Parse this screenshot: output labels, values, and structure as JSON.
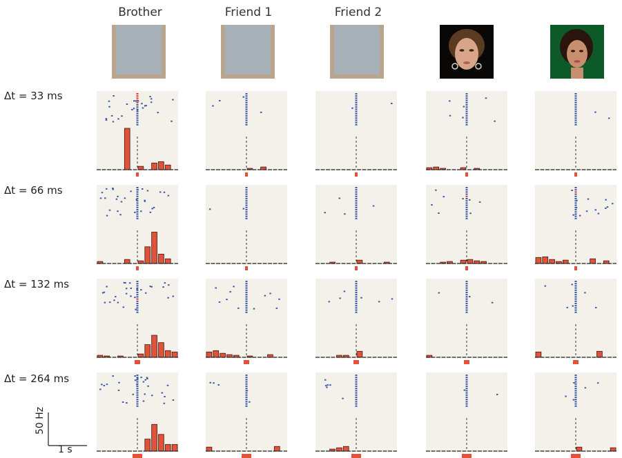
{
  "columns": [
    {
      "title": "Brother",
      "face": "masked-face-icon"
    },
    {
      "title": "Friend 1",
      "face": "masked-face-icon"
    },
    {
      "title": "Friend 2",
      "face": "masked-face-icon"
    },
    {
      "title": "",
      "face": "celebrity-face-1-icon"
    },
    {
      "title": "",
      "face": "celebrity-face-2-icon"
    }
  ],
  "rows": [
    "Δt = 33 ms",
    "Δt = 66 ms",
    "Δt = 132 ms",
    "Δt = 264 ms"
  ],
  "scale_bar": {
    "y_label": "50 Hz",
    "x_label": "1 s"
  },
  "colors": {
    "raster": "#3c5aa8",
    "raster_highlight": "#e2352b",
    "bar": "#e0533a",
    "bar_edge": "#3a1a12",
    "panel_bg": "#f4f1ea"
  },
  "chart_data": {
    "type": "bar",
    "description_units": "histogram bins of firing rate (Hz) over time; 12 bins per panel",
    "bins": 12,
    "panels": [
      [
        {
          "hist": [
            0,
            0,
            0,
            0,
            62,
            0,
            5,
            0,
            10,
            12,
            7,
            0
          ],
          "stim": 0.5
        },
        {
          "hist": [
            0,
            0,
            0,
            0,
            0,
            0,
            2,
            0,
            4,
            0,
            0,
            0
          ],
          "stim": 0.5
        },
        {
          "hist": [
            0,
            0,
            0,
            0,
            0,
            0,
            0,
            0,
            0,
            0,
            0,
            0
          ],
          "stim": 0.5
        },
        {
          "hist": [
            3,
            4,
            2,
            0,
            0,
            3,
            0,
            2,
            0,
            0,
            0,
            0
          ],
          "stim": 0.5
        },
        {
          "hist": [
            0,
            0,
            0,
            0,
            0,
            0,
            0,
            0,
            0,
            0,
            0,
            0
          ],
          "stim": 0.5
        }
      ],
      [
        {
          "hist": [
            3,
            0,
            0,
            0,
            6,
            0,
            4,
            25,
            47,
            14,
            7,
            0
          ],
          "stim": 0.5
        },
        {
          "hist": [
            0,
            0,
            0,
            0,
            0,
            0,
            0,
            0,
            0,
            0,
            0,
            0
          ],
          "stim": 0.5
        },
        {
          "hist": [
            0,
            0,
            2,
            0,
            0,
            0,
            5,
            0,
            0,
            0,
            2,
            0
          ],
          "stim": 0.5
        },
        {
          "hist": [
            0,
            0,
            2,
            3,
            0,
            5,
            6,
            4,
            3,
            0,
            0,
            0
          ],
          "stim": 0.5
        },
        {
          "hist": [
            9,
            10,
            6,
            3,
            5,
            0,
            0,
            0,
            7,
            0,
            4,
            0
          ],
          "stim": 0.5
        }
      ],
      [
        {
          "hist": [
            3,
            2,
            0,
            2,
            0,
            0,
            5,
            19,
            33,
            22,
            10,
            8
          ],
          "stim": 0.5
        },
        {
          "hist": [
            8,
            10,
            6,
            4,
            3,
            0,
            2,
            0,
            0,
            4,
            0,
            0
          ],
          "stim": 0.5
        },
        {
          "hist": [
            0,
            0,
            0,
            3,
            3,
            0,
            9,
            0,
            0,
            0,
            0,
            0
          ],
          "stim": 0.5
        },
        {
          "hist": [
            3,
            0,
            0,
            0,
            0,
            0,
            0,
            0,
            0,
            0,
            0,
            0
          ],
          "stim": 0.5
        },
        {
          "hist": [
            8,
            0,
            0,
            0,
            0,
            0,
            0,
            0,
            0,
            9,
            0,
            0
          ],
          "stim": 0.5
        }
      ],
      [
        {
          "hist": [
            0,
            0,
            0,
            0,
            0,
            0,
            0,
            18,
            40,
            25,
            10,
            10
          ],
          "stim": 0.5
        },
        {
          "hist": [
            6,
            0,
            0,
            0,
            0,
            0,
            0,
            0,
            0,
            0,
            7,
            0
          ],
          "stim": 0.5
        },
        {
          "hist": [
            0,
            0,
            3,
            5,
            7,
            0,
            0,
            0,
            0,
            0,
            0,
            0
          ],
          "stim": 0.5
        },
        {
          "hist": [
            0,
            0,
            0,
            0,
            0,
            0,
            0,
            0,
            0,
            0,
            0,
            0
          ],
          "stim": 0.5
        },
        {
          "hist": [
            0,
            0,
            0,
            0,
            0,
            0,
            6,
            0,
            0,
            0,
            0,
            5
          ],
          "stim": 0.5
        }
      ]
    ]
  }
}
